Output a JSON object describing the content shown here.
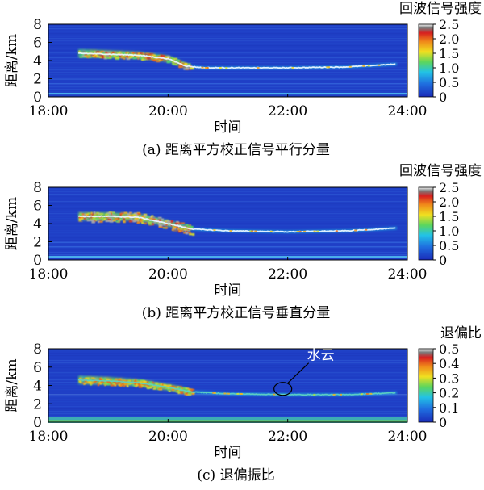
{
  "chart_data": [
    {
      "type": "heatmap",
      "title": "回波信号强度",
      "caption": "(a) 距离平方校正信号平行分量",
      "xlabel": "时间",
      "ylabel": "距离/km",
      "x_ticks": [
        "18:00",
        "20:00",
        "22:00",
        "24:00"
      ],
      "y_ticks": [
        "0",
        "2",
        "4",
        "6",
        "8"
      ],
      "xlim": [
        18,
        24
      ],
      "ylim": [
        0,
        8
      ],
      "colorbar": {
        "ticks": [
          "0",
          "0.5",
          "1.0",
          "1.5",
          "2.0",
          "2.5"
        ],
        "range": [
          0,
          2.5
        ]
      },
      "cloud_layer": [
        [
          18.5,
          4.8
        ],
        [
          19.0,
          4.7
        ],
        [
          19.5,
          4.6
        ],
        [
          20.0,
          4.2
        ],
        [
          20.3,
          3.4
        ],
        [
          20.6,
          3.2
        ],
        [
          21.0,
          3.2
        ],
        [
          22.0,
          3.2
        ],
        [
          23.0,
          3.3
        ],
        [
          23.8,
          3.6
        ]
      ],
      "peak_value": 2.0
    },
    {
      "type": "heatmap",
      "title": "回波信号强度",
      "caption": "(b) 距离平方校正信号垂直分量",
      "xlabel": "时间",
      "ylabel": "距离/km",
      "x_ticks": [
        "18:00",
        "20:00",
        "22:00",
        "24:00"
      ],
      "y_ticks": [
        "0",
        "2",
        "4",
        "6",
        "8"
      ],
      "xlim": [
        18,
        24
      ],
      "ylim": [
        0,
        8
      ],
      "colorbar": {
        "ticks": [
          "0",
          "0.5",
          "1.0",
          "1.5",
          "2.0",
          "2.5"
        ],
        "range": [
          0,
          2.5
        ]
      },
      "cloud_layer": [
        [
          18.5,
          4.8
        ],
        [
          19.0,
          4.8
        ],
        [
          19.5,
          4.7
        ],
        [
          20.0,
          4.0
        ],
        [
          20.4,
          3.4
        ],
        [
          21.0,
          3.2
        ],
        [
          22.0,
          3.1
        ],
        [
          23.0,
          3.2
        ],
        [
          23.8,
          3.5
        ]
      ],
      "peak_value": 2.3
    },
    {
      "type": "heatmap",
      "title": "退偏比",
      "caption": "(c) 退偏振比",
      "xlabel": "时间",
      "ylabel": "距离/km",
      "x_ticks": [
        "18:00",
        "20:00",
        "22:00",
        "24:00"
      ],
      "y_ticks": [
        "0",
        "2",
        "4",
        "6",
        "8"
      ],
      "xlim": [
        18,
        24
      ],
      "ylim": [
        0,
        8
      ],
      "colorbar": {
        "ticks": [
          "0",
          "0.1",
          "0.2",
          "0.3",
          "0.4",
          "0.5"
        ],
        "range": [
          0,
          0.5
        ]
      },
      "cloud_layer": [
        [
          18.5,
          4.6
        ],
        [
          19.0,
          4.5
        ],
        [
          19.5,
          4.3
        ],
        [
          20.0,
          3.8
        ],
        [
          20.4,
          3.3
        ],
        [
          21.0,
          3.1
        ],
        [
          22.0,
          3.0
        ],
        [
          23.0,
          3.0
        ],
        [
          23.8,
          3.2
        ]
      ],
      "peak_value": 0.38,
      "annotation": {
        "text": "水云",
        "x": 22.0,
        "y": 3.1
      }
    }
  ]
}
